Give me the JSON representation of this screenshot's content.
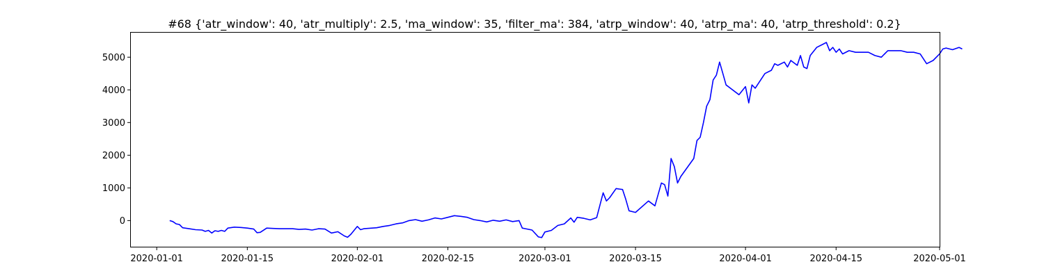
{
  "chart_data": {
    "type": "line",
    "title": "#68 {'atr_window': 40, 'atr_multiply': 2.5, 'ma_window': 35, 'filter_ma': 384, 'atrp_window': 40, 'atrp_ma': 40, 'atrp_threshold': 0.2}",
    "xlabel": "",
    "ylabel": "",
    "x_axis_type": "date",
    "xlim": [
      "2019-12-28",
      "2020-05-01"
    ],
    "ylim": [
      -800,
      5750
    ],
    "x_ticks": [
      "2020-01-01",
      "2020-01-15",
      "2020-02-01",
      "2020-02-15",
      "2020-03-01",
      "2020-03-15",
      "2020-04-01",
      "2020-04-15",
      "2020-05-01"
    ],
    "x_tick_labels": [
      "2020-01-01",
      "2020-01-15",
      "2020-02-01",
      "2020-02-15",
      "2020-03-01",
      "2020-03-15",
      "2020-04-01",
      "2020-04-15",
      "2020-05-01"
    ],
    "y_ticks": [
      0,
      1000,
      2000,
      3000,
      4000,
      5000
    ],
    "y_tick_labels": [
      "0",
      "1000",
      "2000",
      "3000",
      "4000",
      "5000"
    ],
    "grid": false,
    "legend": "none",
    "series": [
      {
        "color": "#0000ff",
        "points": [
          [
            "2020-01-03",
            0
          ],
          [
            "2020-01-03T12",
            -30
          ],
          [
            "2020-01-04",
            -100
          ],
          [
            "2020-01-04T12",
            -120
          ],
          [
            "2020-01-05",
            -220
          ],
          [
            "2020-01-06",
            -250
          ],
          [
            "2020-01-07",
            -280
          ],
          [
            "2020-01-08",
            -290
          ],
          [
            "2020-01-08T12",
            -330
          ],
          [
            "2020-01-09",
            -300
          ],
          [
            "2020-01-09T12",
            -380
          ],
          [
            "2020-01-10",
            -310
          ],
          [
            "2020-01-10T12",
            -330
          ],
          [
            "2020-01-11",
            -300
          ],
          [
            "2020-01-11T12",
            -330
          ],
          [
            "2020-01-12",
            -230
          ],
          [
            "2020-01-13",
            -200
          ],
          [
            "2020-01-14",
            -210
          ],
          [
            "2020-01-15",
            -230
          ],
          [
            "2020-01-16",
            -260
          ],
          [
            "2020-01-16T12",
            -370
          ],
          [
            "2020-01-17",
            -360
          ],
          [
            "2020-01-18",
            -230
          ],
          [
            "2020-01-19",
            -240
          ],
          [
            "2020-01-20",
            -250
          ],
          [
            "2020-01-21",
            -250
          ],
          [
            "2020-01-22",
            -250
          ],
          [
            "2020-01-23",
            -270
          ],
          [
            "2020-01-24",
            -260
          ],
          [
            "2020-01-25",
            -290
          ],
          [
            "2020-01-26",
            -250
          ],
          [
            "2020-01-27",
            -260
          ],
          [
            "2020-01-28",
            -380
          ],
          [
            "2020-01-29",
            -340
          ],
          [
            "2020-01-30",
            -470
          ],
          [
            "2020-01-30T12",
            -510
          ],
          [
            "2020-01-31",
            -420
          ],
          [
            "2020-02-01",
            -180
          ],
          [
            "2020-02-01T12",
            -280
          ],
          [
            "2020-02-02",
            -250
          ],
          [
            "2020-02-04",
            -220
          ],
          [
            "2020-02-05",
            -180
          ],
          [
            "2020-02-06",
            -150
          ],
          [
            "2020-02-07",
            -100
          ],
          [
            "2020-02-08",
            -70
          ],
          [
            "2020-02-09",
            0
          ],
          [
            "2020-02-10",
            30
          ],
          [
            "2020-02-11",
            -20
          ],
          [
            "2020-02-12",
            20
          ],
          [
            "2020-02-13",
            80
          ],
          [
            "2020-02-14",
            50
          ],
          [
            "2020-02-15",
            100
          ],
          [
            "2020-02-16",
            150
          ],
          [
            "2020-02-17",
            130
          ],
          [
            "2020-02-18",
            100
          ],
          [
            "2020-02-19",
            30
          ],
          [
            "2020-02-20",
            0
          ],
          [
            "2020-02-21",
            -40
          ],
          [
            "2020-02-22",
            10
          ],
          [
            "2020-02-23",
            -20
          ],
          [
            "2020-02-24",
            20
          ],
          [
            "2020-02-25",
            -30
          ],
          [
            "2020-02-26",
            0
          ],
          [
            "2020-02-26T12",
            -230
          ],
          [
            "2020-02-27",
            -250
          ],
          [
            "2020-02-28",
            -290
          ],
          [
            "2020-02-29",
            -500
          ],
          [
            "2020-02-29T12",
            -520
          ],
          [
            "2020-03-01",
            -350
          ],
          [
            "2020-03-02",
            -300
          ],
          [
            "2020-03-03",
            -150
          ],
          [
            "2020-03-04",
            -100
          ],
          [
            "2020-03-05",
            80
          ],
          [
            "2020-03-05T12",
            -50
          ],
          [
            "2020-03-06",
            100
          ],
          [
            "2020-03-07",
            70
          ],
          [
            "2020-03-08",
            20
          ],
          [
            "2020-03-09",
            90
          ],
          [
            "2020-03-10",
            850
          ],
          [
            "2020-03-10T12",
            600
          ],
          [
            "2020-03-11",
            700
          ],
          [
            "2020-03-12",
            980
          ],
          [
            "2020-03-13",
            950
          ],
          [
            "2020-03-13T12",
            650
          ],
          [
            "2020-03-14",
            300
          ],
          [
            "2020-03-15",
            250
          ],
          [
            "2020-03-17",
            600
          ],
          [
            "2020-03-18",
            450
          ],
          [
            "2020-03-18T12",
            800
          ],
          [
            "2020-03-19",
            1150
          ],
          [
            "2020-03-19T12",
            1100
          ],
          [
            "2020-03-20",
            750
          ],
          [
            "2020-03-20T12",
            1900
          ],
          [
            "2020-03-21",
            1650
          ],
          [
            "2020-03-21T12",
            1150
          ],
          [
            "2020-03-22",
            1350
          ],
          [
            "2020-03-24",
            1900
          ],
          [
            "2020-03-24T12",
            2450
          ],
          [
            "2020-03-25",
            2550
          ],
          [
            "2020-03-25T12",
            3000
          ],
          [
            "2020-03-26",
            3500
          ],
          [
            "2020-03-26T12",
            3700
          ],
          [
            "2020-03-27",
            4300
          ],
          [
            "2020-03-27T12",
            4450
          ],
          [
            "2020-03-28",
            4850
          ],
          [
            "2020-03-28T12",
            4500
          ],
          [
            "2020-03-29",
            4150
          ],
          [
            "2020-03-31",
            3850
          ],
          [
            "2020-04-01",
            4100
          ],
          [
            "2020-04-01T12",
            3600
          ],
          [
            "2020-04-02",
            4150
          ],
          [
            "2020-04-02T12",
            4050
          ],
          [
            "2020-04-03",
            4200
          ],
          [
            "2020-04-04",
            4500
          ],
          [
            "2020-04-05",
            4600
          ],
          [
            "2020-04-05T12",
            4800
          ],
          [
            "2020-04-06",
            4750
          ],
          [
            "2020-04-07",
            4850
          ],
          [
            "2020-04-07T12",
            4700
          ],
          [
            "2020-04-08",
            4900
          ],
          [
            "2020-04-09",
            4750
          ],
          [
            "2020-04-09T12",
            5050
          ],
          [
            "2020-04-10",
            4700
          ],
          [
            "2020-04-10T12",
            4650
          ],
          [
            "2020-04-11",
            5050
          ],
          [
            "2020-04-12",
            5300
          ],
          [
            "2020-04-13",
            5400
          ],
          [
            "2020-04-13T12",
            5450
          ],
          [
            "2020-04-14",
            5200
          ],
          [
            "2020-04-14T12",
            5300
          ],
          [
            "2020-04-15",
            5150
          ],
          [
            "2020-04-15T12",
            5250
          ],
          [
            "2020-04-16",
            5100
          ],
          [
            "2020-04-17",
            5200
          ],
          [
            "2020-04-18",
            5150
          ],
          [
            "2020-04-19",
            5150
          ],
          [
            "2020-04-20",
            5150
          ],
          [
            "2020-04-21",
            5050
          ],
          [
            "2020-04-22",
            5000
          ],
          [
            "2020-04-23",
            5200
          ],
          [
            "2020-04-24",
            5200
          ],
          [
            "2020-04-25",
            5200
          ],
          [
            "2020-04-26",
            5150
          ],
          [
            "2020-04-27",
            5150
          ],
          [
            "2020-04-28",
            5100
          ],
          [
            "2020-04-29",
            4800
          ],
          [
            "2020-04-30",
            4900
          ],
          [
            "2020-05-01",
            5100
          ],
          [
            "2020-05-01T12",
            5250
          ],
          [
            "2020-05-02",
            5280
          ],
          [
            "2020-05-03",
            5230
          ],
          [
            "2020-05-04",
            5300
          ],
          [
            "2020-05-04T12",
            5250
          ]
        ]
      }
    ]
  }
}
